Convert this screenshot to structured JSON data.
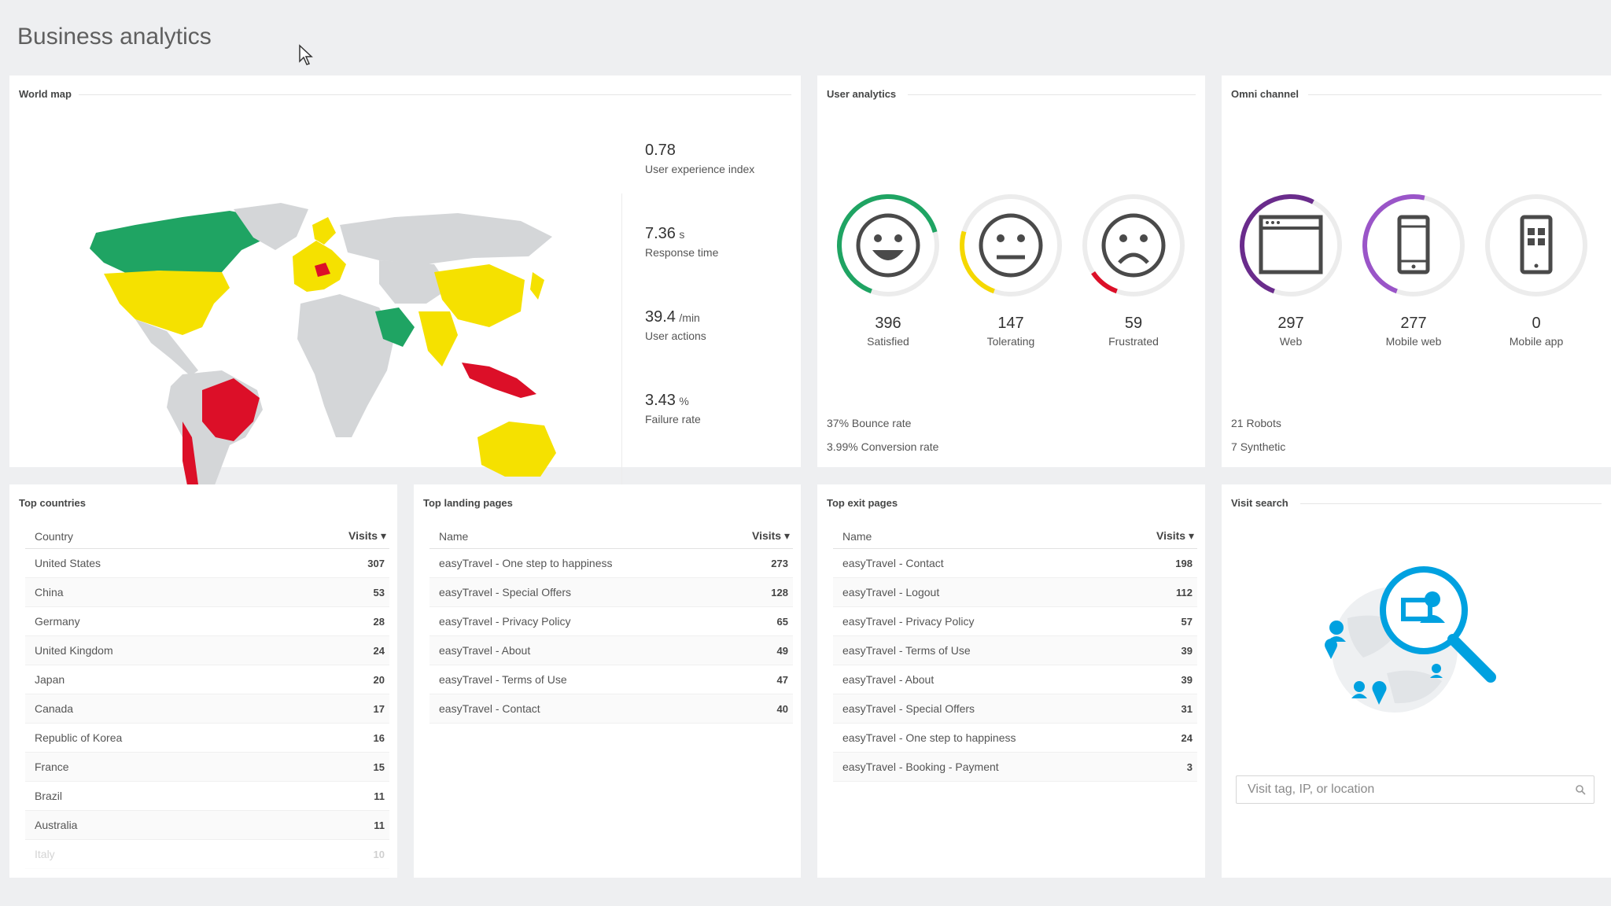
{
  "page": {
    "title": "Business analytics"
  },
  "world_map": {
    "title": "World map",
    "kpis": [
      {
        "value": "0.78",
        "unit": "",
        "label": "User experience index"
      },
      {
        "value": "7.36",
        "unit": "s",
        "label": "Response time"
      },
      {
        "value": "39.4",
        "unit": "/min",
        "label": "User actions"
      },
      {
        "value": "3.43",
        "unit": "%",
        "label": "Failure rate"
      }
    ],
    "colors": {
      "good": "#1fa463",
      "ok": "#f5e100",
      "bad": "#dc0f28",
      "neutral": "#d4d6d8"
    }
  },
  "user_analytics": {
    "title": "User analytics",
    "gauges": [
      {
        "icon": "smiley-satisfied-icon",
        "value": "396",
        "label": "Satisfied",
        "fraction": 0.65,
        "color": "#1fa463"
      },
      {
        "icon": "smiley-neutral-icon",
        "value": "147",
        "label": "Tolerating",
        "fraction": 0.24,
        "color": "#f5d800"
      },
      {
        "icon": "smiley-frustrated-icon",
        "value": "59",
        "label": "Frustrated",
        "fraction": 0.1,
        "color": "#dc0f28"
      }
    ],
    "bounce_rate": "37%",
    "bounce_label": "Bounce rate",
    "conversion_rate": "3.99%",
    "conversion_label": "Conversion rate"
  },
  "omni_channel": {
    "title": "Omni channel",
    "gauges": [
      {
        "icon": "browser-window-icon",
        "value": "297",
        "label": "Web",
        "fraction": 0.52,
        "color": "#6a2c8c"
      },
      {
        "icon": "mobile-web-icon",
        "value": "277",
        "label": "Mobile web",
        "fraction": 0.48,
        "color": "#9a55c8"
      },
      {
        "icon": "mobile-app-icon",
        "value": "0",
        "label": "Mobile app",
        "fraction": 0.0,
        "color": "#9a55c8"
      }
    ],
    "robots_count": "21",
    "robots_label": "Robots",
    "synthetic_count": "7",
    "synthetic_label": "Synthetic"
  },
  "top_countries": {
    "title": "Top countries",
    "col_name": "Country",
    "col_visits": "Visits ▾",
    "rows": [
      {
        "name": "United States",
        "visits": "307"
      },
      {
        "name": "China",
        "visits": "53"
      },
      {
        "name": "Germany",
        "visits": "28"
      },
      {
        "name": "United Kingdom",
        "visits": "24"
      },
      {
        "name": "Japan",
        "visits": "20"
      },
      {
        "name": "Canada",
        "visits": "17"
      },
      {
        "name": "Republic of Korea",
        "visits": "16"
      },
      {
        "name": "France",
        "visits": "15"
      },
      {
        "name": "Brazil",
        "visits": "11"
      },
      {
        "name": "Australia",
        "visits": "11"
      },
      {
        "name": "Italy",
        "visits": "10"
      }
    ]
  },
  "top_landing_pages": {
    "title": "Top landing pages",
    "col_name": "Name",
    "col_visits": "Visits ▾",
    "rows": [
      {
        "name": "easyTravel - One step to happiness",
        "visits": "273"
      },
      {
        "name": "easyTravel - Special Offers",
        "visits": "128"
      },
      {
        "name": "easyTravel - Privacy Policy",
        "visits": "65"
      },
      {
        "name": "easyTravel - About",
        "visits": "49"
      },
      {
        "name": "easyTravel - Terms of Use",
        "visits": "47"
      },
      {
        "name": "easyTravel - Contact",
        "visits": "40"
      }
    ]
  },
  "top_exit_pages": {
    "title": "Top exit pages",
    "col_name": "Name",
    "col_visits": "Visits ▾",
    "rows": [
      {
        "name": "easyTravel - Contact",
        "visits": "198"
      },
      {
        "name": "easyTravel - Logout",
        "visits": "112"
      },
      {
        "name": "easyTravel - Privacy Policy",
        "visits": "57"
      },
      {
        "name": "easyTravel - Terms of Use",
        "visits": "39"
      },
      {
        "name": "easyTravel - About",
        "visits": "39"
      },
      {
        "name": "easyTravel - Special Offers",
        "visits": "31"
      },
      {
        "name": "easyTravel - One step to happiness",
        "visits": "24"
      },
      {
        "name": "easyTravel - Booking - Payment",
        "visits": "3"
      }
    ]
  },
  "visit_search": {
    "title": "Visit search",
    "placeholder": "Visit tag, IP, or location",
    "illustration_icon": "globe-search-icon",
    "search_icon": "search-icon",
    "accent": "#00a1e0"
  }
}
